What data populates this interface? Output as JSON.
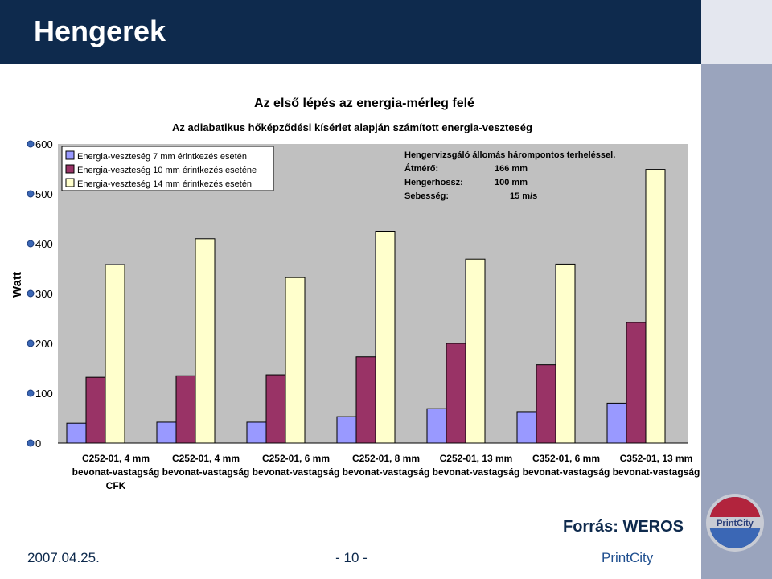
{
  "header": {
    "title": "Hengerek"
  },
  "chart_data": {
    "type": "bar",
    "title": "Az első lépés az energia-mérleg felé",
    "subtitle": "Az adiabatikus hőképződési kísérlet alapján számított energia-veszteség",
    "ylabel": "Watt",
    "ylim": [
      0,
      600
    ],
    "yticks": [
      0,
      100,
      200,
      300,
      400,
      500,
      600
    ],
    "grid": false,
    "legend": "top-left",
    "categories": [
      [
        "C252-01, 4 mm",
        "bevonat-vastagság",
        "CFK"
      ],
      [
        "C252-01, 4 mm",
        "bevonat-vastagság"
      ],
      [
        "C252-01, 6 mm",
        "bevonat-vastagság"
      ],
      [
        "C252-01, 8 mm",
        "bevonat-vastagság"
      ],
      [
        "C252-01, 13 mm",
        "bevonat-vastagság"
      ],
      [
        "C352-01, 6 mm",
        "bevonat-vastagság"
      ],
      [
        "C352-01, 13 mm",
        "bevonat-vastagság"
      ]
    ],
    "series": [
      {
        "name": "Energia-veszteség 7 mm érintkezés esetén",
        "color": "#9999ff",
        "values": [
          40,
          42,
          42,
          53,
          69,
          63,
          80
        ]
      },
      {
        "name": "Energia-veszteség 10 mm érintkezés eseténe",
        "color": "#993366",
        "values": [
          132,
          135,
          137,
          173,
          200,
          157,
          242
        ]
      },
      {
        "name": "Energia-veszteség 14 mm érintkezés esetén",
        "color": "#ffffcc",
        "values": [
          358,
          410,
          332,
          425,
          369,
          359,
          549
        ]
      }
    ],
    "annotation": {
      "lines": [
        {
          "label": "Hengervizsgáló állomás hárompontos terheléssel.",
          "value": ""
        },
        {
          "label": "Átmérő:",
          "value": "166 mm"
        },
        {
          "label": "Hengerhossz:",
          "value": "100 mm"
        },
        {
          "label": "Sebesség:",
          "value": "15 m/s"
        }
      ]
    }
  },
  "source": "Forrás: WEROS",
  "footer": {
    "date": "2007.04.25.",
    "page": "- 10 -",
    "brand": "PrintCity"
  },
  "logo": {
    "text": "PrintCity"
  },
  "colors": {
    "header_bg": "#0e2a4d",
    "right_stripe": "#9aa4bd",
    "plot_bg": "#c0c0c0"
  }
}
